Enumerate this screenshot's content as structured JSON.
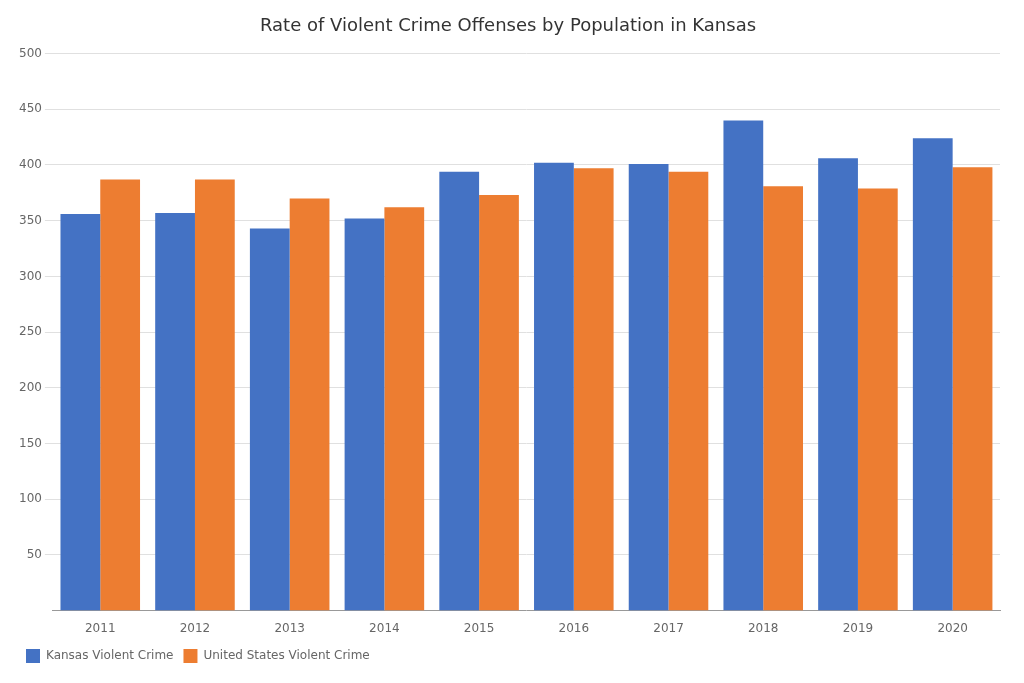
{
  "chart_data": {
    "type": "bar",
    "title": "Rate of Violent Crime Offenses by Population in Kansas",
    "categories": [
      "2011",
      "2012",
      "2013",
      "2014",
      "2015",
      "2016",
      "2017",
      "2018",
      "2019",
      "2020"
    ],
    "series": [
      {
        "name": "Kansas Violent Crime",
        "color": "#4472C4",
        "values": [
          356,
          357,
          343,
          352,
          394,
          402,
          401,
          440,
          406,
          424
        ]
      },
      {
        "name": "United States Violent Crime",
        "color": "#ED7D31",
        "values": [
          387,
          387,
          370,
          362,
          373,
          397,
          394,
          381,
          379,
          398
        ]
      }
    ],
    "ylim": [
      0,
      500
    ],
    "yticks": [
      50,
      100,
      150,
      200,
      250,
      300,
      350,
      400,
      450,
      500
    ],
    "grid": true,
    "legend": "lower left"
  }
}
